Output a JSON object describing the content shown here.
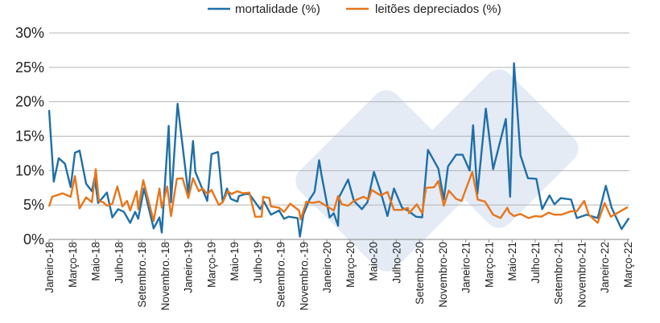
{
  "chart_data": {
    "type": "line",
    "title": "",
    "xlabel": "",
    "ylabel": "",
    "ylim": [
      0,
      30
    ],
    "y_ticks": [
      "0%",
      "5%",
      "10%",
      "15%",
      "20%",
      "25%",
      "30%"
    ],
    "y_tick_values": [
      0,
      5,
      10,
      15,
      20,
      25,
      30
    ],
    "grid": "horizontal",
    "legend_position": "top",
    "x_ticks": [
      {
        "label": "Janeiro-18",
        "date": "2018-01-01"
      },
      {
        "label": "Março-18",
        "date": "2018-03-01"
      },
      {
        "label": "Maio-18",
        "date": "2018-05-01"
      },
      {
        "label": "Julho-18",
        "date": "2018-07-01"
      },
      {
        "label": "Setembro.-18",
        "date": "2018-09-01"
      },
      {
        "label": "Novembro.-18",
        "date": "2018-11-01"
      },
      {
        "label": "Janeiro-19",
        "date": "2019-01-01"
      },
      {
        "label": "Março-19",
        "date": "2019-03-01"
      },
      {
        "label": "Maio-19",
        "date": "2019-05-01"
      },
      {
        "label": "Julho-19",
        "date": "2019-07-01"
      },
      {
        "label": "Setembro.-19",
        "date": "2019-09-01"
      },
      {
        "label": "Novembro.-19",
        "date": "2019-11-01"
      },
      {
        "label": "Janeiro-20",
        "date": "2020-01-01"
      },
      {
        "label": "Março-20",
        "date": "2020-03-01"
      },
      {
        "label": "Maio-20",
        "date": "2020-05-01"
      },
      {
        "label": "Julho-20",
        "date": "2020-07-01"
      },
      {
        "label": "Setembro-20",
        "date": "2020-09-01"
      },
      {
        "label": "Novembro-20",
        "date": "2020-11-01"
      },
      {
        "label": "Janeiro-21",
        "date": "2021-01-01"
      },
      {
        "label": "Março-21",
        "date": "2021-03-01"
      },
      {
        "label": "Maio-21",
        "date": "2021-05-01"
      },
      {
        "label": "Julho-21",
        "date": "2021-07-01"
      },
      {
        "label": "Setembro-21",
        "date": "2021-09-01"
      },
      {
        "label": "Novembro-21",
        "date": "2021-11-01"
      },
      {
        "label": "Janeiro-22",
        "date": "2022-01-01"
      },
      {
        "label": "Março-22",
        "date": "2022-03-01"
      }
    ],
    "series": [
      {
        "name": "mortalidade (%)",
        "color": "#1f6fa8",
        "points": [
          [
            "2018-01-01",
            18.8
          ],
          [
            "2018-01-13",
            8.4
          ],
          [
            "2018-01-26",
            11.8
          ],
          [
            "2018-02-12",
            11.0
          ],
          [
            "2018-02-27",
            7.6
          ],
          [
            "2018-03-08",
            12.6
          ],
          [
            "2018-03-20",
            12.9
          ],
          [
            "2018-04-07",
            8.1
          ],
          [
            "2018-04-22",
            7.0
          ],
          [
            "2018-04-29",
            9.0
          ],
          [
            "2018-05-08",
            5.3
          ],
          [
            "2018-06-01",
            6.8
          ],
          [
            "2018-06-15",
            3.2
          ],
          [
            "2018-06-30",
            4.4
          ],
          [
            "2018-07-15",
            4.0
          ],
          [
            "2018-08-01",
            2.4
          ],
          [
            "2018-08-14",
            4.0
          ],
          [
            "2018-08-22",
            3.0
          ],
          [
            "2018-09-07",
            7.4
          ],
          [
            "2018-10-02",
            1.6
          ],
          [
            "2018-10-17",
            3.2
          ],
          [
            "2018-10-23",
            1.0
          ],
          [
            "2018-11-11",
            16.5
          ],
          [
            "2018-11-17",
            5.4
          ],
          [
            "2018-12-04",
            19.7
          ],
          [
            "2019-01-02",
            6.6
          ],
          [
            "2019-01-14",
            14.3
          ],
          [
            "2019-01-20",
            9.8
          ],
          [
            "2019-02-21",
            5.6
          ],
          [
            "2019-03-02",
            12.4
          ],
          [
            "2019-03-19",
            12.7
          ],
          [
            "2019-04-01",
            5.4
          ],
          [
            "2019-04-12",
            7.4
          ],
          [
            "2019-04-22",
            5.9
          ],
          [
            "2019-05-09",
            5.5
          ],
          [
            "2019-05-13",
            6.3
          ],
          [
            "2019-05-30",
            6.6
          ],
          [
            "2019-06-10",
            6.6
          ],
          [
            "2019-07-08",
            4.4
          ],
          [
            "2019-07-18",
            5.5
          ],
          [
            "2019-08-06",
            3.6
          ],
          [
            "2019-08-27",
            4.2
          ],
          [
            "2019-09-10",
            3.0
          ],
          [
            "2019-09-22",
            3.3
          ],
          [
            "2019-10-15",
            3.1
          ],
          [
            "2019-10-21",
            0.4
          ],
          [
            "2019-10-30",
            3.6
          ],
          [
            "2019-11-16",
            5.8
          ],
          [
            "2019-11-29",
            6.9
          ],
          [
            "2019-12-11",
            11.5
          ],
          [
            "2019-12-17",
            9.4
          ],
          [
            "2020-01-08",
            3.2
          ],
          [
            "2020-01-19",
            3.8
          ],
          [
            "2020-01-30",
            2.0
          ],
          [
            "2020-02-03",
            6.2
          ],
          [
            "2020-02-26",
            8.7
          ],
          [
            "2020-03-11",
            5.6
          ],
          [
            "2020-04-02",
            4.4
          ],
          [
            "2020-04-16",
            5.4
          ],
          [
            "2020-05-03",
            9.8
          ],
          [
            "2020-05-20",
            7.0
          ],
          [
            "2020-06-08",
            3.4
          ],
          [
            "2020-06-25",
            7.4
          ],
          [
            "2020-07-16",
            4.6
          ],
          [
            "2020-08-01",
            4.2
          ],
          [
            "2020-08-22",
            3.3
          ],
          [
            "2020-09-08",
            3.2
          ],
          [
            "2020-09-23",
            13.0
          ],
          [
            "2020-10-20",
            10.3
          ],
          [
            "2020-11-04",
            5.8
          ],
          [
            "2020-11-15",
            10.6
          ],
          [
            "2020-12-06",
            12.3
          ],
          [
            "2020-12-23",
            12.3
          ],
          [
            "2021-01-11",
            10.0
          ],
          [
            "2021-01-20",
            16.6
          ],
          [
            "2021-02-01",
            6.6
          ],
          [
            "2021-02-23",
            19.0
          ],
          [
            "2021-03-12",
            10.2
          ],
          [
            "2021-04-15",
            17.5
          ],
          [
            "2021-04-26",
            6.2
          ],
          [
            "2021-05-06",
            25.6
          ],
          [
            "2021-05-23",
            12.2
          ],
          [
            "2021-06-12",
            8.9
          ],
          [
            "2021-07-04",
            8.8
          ],
          [
            "2021-07-19",
            4.4
          ],
          [
            "2021-08-08",
            6.4
          ],
          [
            "2021-08-21",
            5.1
          ],
          [
            "2021-09-07",
            6.0
          ],
          [
            "2021-10-04",
            5.8
          ],
          [
            "2021-10-19",
            3.1
          ],
          [
            "2021-11-14",
            3.6
          ],
          [
            "2021-12-13",
            3.1
          ],
          [
            "2022-01-04",
            7.8
          ],
          [
            "2022-01-19",
            4.6
          ],
          [
            "2022-02-15",
            1.5
          ],
          [
            "2022-03-04",
            3.1
          ]
        ]
      },
      {
        "name": "leitões depreciados (%)",
        "color": "#e8751a",
        "points": [
          [
            "2018-01-01",
            4.8
          ],
          [
            "2018-01-09",
            6.2
          ],
          [
            "2018-02-06",
            6.7
          ],
          [
            "2018-02-27",
            6.2
          ],
          [
            "2018-03-08",
            9.2
          ],
          [
            "2018-03-20",
            4.5
          ],
          [
            "2018-04-07",
            6.1
          ],
          [
            "2018-04-22",
            5.4
          ],
          [
            "2018-05-02",
            10.2
          ],
          [
            "2018-05-10",
            5.6
          ],
          [
            "2018-05-21",
            5.4
          ],
          [
            "2018-06-01",
            4.9
          ],
          [
            "2018-06-15",
            5.2
          ],
          [
            "2018-06-28",
            7.7
          ],
          [
            "2018-07-11",
            4.8
          ],
          [
            "2018-07-23",
            5.6
          ],
          [
            "2018-08-01",
            4.2
          ],
          [
            "2018-08-18",
            7.0
          ],
          [
            "2018-08-22",
            4.4
          ],
          [
            "2018-09-05",
            8.6
          ],
          [
            "2018-10-02",
            2.7
          ],
          [
            "2018-10-17",
            7.4
          ],
          [
            "2018-10-23",
            4.6
          ],
          [
            "2018-11-07",
            7.7
          ],
          [
            "2018-11-17",
            3.4
          ],
          [
            "2018-12-02",
            8.8
          ],
          [
            "2018-12-17",
            8.9
          ],
          [
            "2019-01-02",
            6.0
          ],
          [
            "2019-01-14",
            8.9
          ],
          [
            "2019-01-29",
            7.0
          ],
          [
            "2019-02-09",
            7.4
          ],
          [
            "2019-02-21",
            6.6
          ],
          [
            "2019-03-02",
            7.2
          ],
          [
            "2019-03-21",
            5.0
          ],
          [
            "2019-04-01",
            5.4
          ],
          [
            "2019-04-14",
            7.0
          ],
          [
            "2019-04-24",
            6.6
          ],
          [
            "2019-05-09",
            7.0
          ],
          [
            "2019-05-24",
            6.7
          ],
          [
            "2019-06-10",
            6.8
          ],
          [
            "2019-06-25",
            3.3
          ],
          [
            "2019-07-12",
            3.3
          ],
          [
            "2019-07-16",
            6.2
          ],
          [
            "2019-08-02",
            6.0
          ],
          [
            "2019-08-06",
            4.8
          ],
          [
            "2019-08-27",
            4.6
          ],
          [
            "2019-09-10",
            4.0
          ],
          [
            "2019-09-26",
            5.2
          ],
          [
            "2019-10-19",
            4.2
          ],
          [
            "2019-10-23",
            2.9
          ],
          [
            "2019-11-08",
            5.5
          ],
          [
            "2019-11-23",
            5.3
          ],
          [
            "2019-12-11",
            5.5
          ],
          [
            "2020-01-19",
            4.2
          ],
          [
            "2020-01-30",
            6.3
          ],
          [
            "2020-02-10",
            5.1
          ],
          [
            "2020-02-26",
            4.9
          ],
          [
            "2020-03-11",
            5.6
          ],
          [
            "2020-04-06",
            6.2
          ],
          [
            "2020-04-19",
            5.8
          ],
          [
            "2020-04-27",
            7.2
          ],
          [
            "2020-05-20",
            6.4
          ],
          [
            "2020-06-08",
            6.9
          ],
          [
            "2020-06-25",
            4.3
          ],
          [
            "2020-07-16",
            4.3
          ],
          [
            "2020-08-01",
            4.6
          ],
          [
            "2020-08-04",
            3.8
          ],
          [
            "2020-08-24",
            5.1
          ],
          [
            "2020-09-08",
            3.8
          ],
          [
            "2020-09-18",
            7.5
          ],
          [
            "2020-10-09",
            7.6
          ],
          [
            "2020-10-20",
            8.5
          ],
          [
            "2020-11-04",
            4.9
          ],
          [
            "2020-11-17",
            7.1
          ],
          [
            "2020-12-06",
            5.9
          ],
          [
            "2020-12-20",
            5.6
          ],
          [
            "2021-01-18",
            9.8
          ],
          [
            "2021-02-02",
            5.8
          ],
          [
            "2021-02-21",
            5.5
          ],
          [
            "2021-03-12",
            3.6
          ],
          [
            "2021-04-01",
            3.1
          ],
          [
            "2021-04-19",
            4.6
          ],
          [
            "2021-04-24",
            3.9
          ],
          [
            "2021-05-06",
            3.4
          ],
          [
            "2021-05-23",
            3.7
          ],
          [
            "2021-06-14",
            3.1
          ],
          [
            "2021-07-01",
            3.4
          ],
          [
            "2021-07-17",
            3.3
          ],
          [
            "2021-08-06",
            3.9
          ],
          [
            "2021-08-21",
            3.6
          ],
          [
            "2021-09-09",
            3.6
          ],
          [
            "2021-10-04",
            4.1
          ],
          [
            "2021-10-19",
            4.1
          ],
          [
            "2021-11-08",
            5.6
          ],
          [
            "2021-11-20",
            3.6
          ],
          [
            "2021-12-13",
            2.4
          ],
          [
            "2022-01-01",
            5.3
          ],
          [
            "2022-01-17",
            3.3
          ],
          [
            "2022-03-01",
            4.7
          ]
        ]
      }
    ]
  }
}
